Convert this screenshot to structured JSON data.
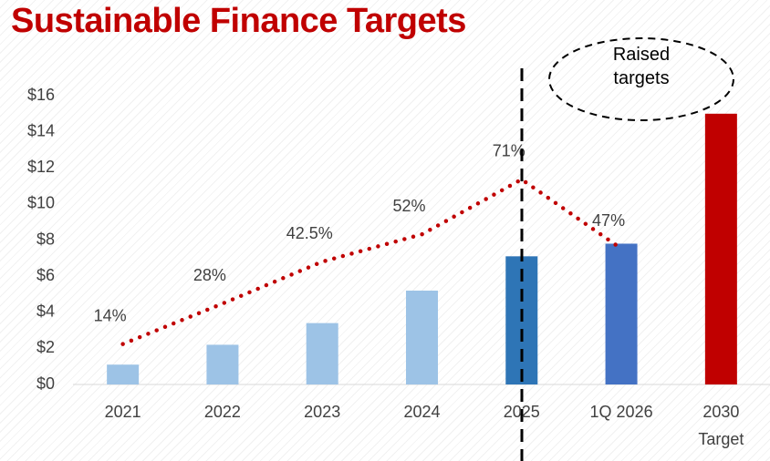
{
  "chart_data": {
    "type": "bar",
    "title": "Sustainable Finance Targets",
    "annotation": "Raised\ntargets",
    "categories": [
      "2021",
      "2022",
      "2023",
      "2024",
      "2025",
      "1Q 2026",
      "2030\nTarget"
    ],
    "series": [
      {
        "type": "bar",
        "colors": [
          "#9dc3e6",
          "#9dc3e6",
          "#9dc3e6",
          "#9dc3e6",
          "#2e75b6",
          "#4472c4",
          "#c00000"
        ],
        "values": [
          1.1,
          2.2,
          3.4,
          5.2,
          7.1,
          7.8,
          15
        ]
      },
      {
        "type": "line",
        "axis": "y2",
        "color": "#c00000",
        "style": "dotted",
        "values": [
          14,
          28,
          42.5,
          52,
          71,
          47,
          null
        ],
        "value_labels": [
          "14%",
          "28%",
          "42.5%",
          "52%",
          "71%",
          "47%",
          null
        ]
      }
    ],
    "ylim": [
      0,
      16
    ],
    "yticks": [
      {
        "value": 0,
        "label": "$0"
      },
      {
        "value": 2,
        "label": "$2"
      },
      {
        "value": 4,
        "label": "$4"
      },
      {
        "value": 6,
        "label": "$6"
      },
      {
        "value": 8,
        "label": "$8"
      },
      {
        "value": 10,
        "label": "$10"
      },
      {
        "value": 12,
        "label": "$12"
      },
      {
        "value": 14,
        "label": "$14"
      },
      {
        "value": 16,
        "label": "$16"
      }
    ],
    "y2lim": [
      0,
      100
    ]
  }
}
